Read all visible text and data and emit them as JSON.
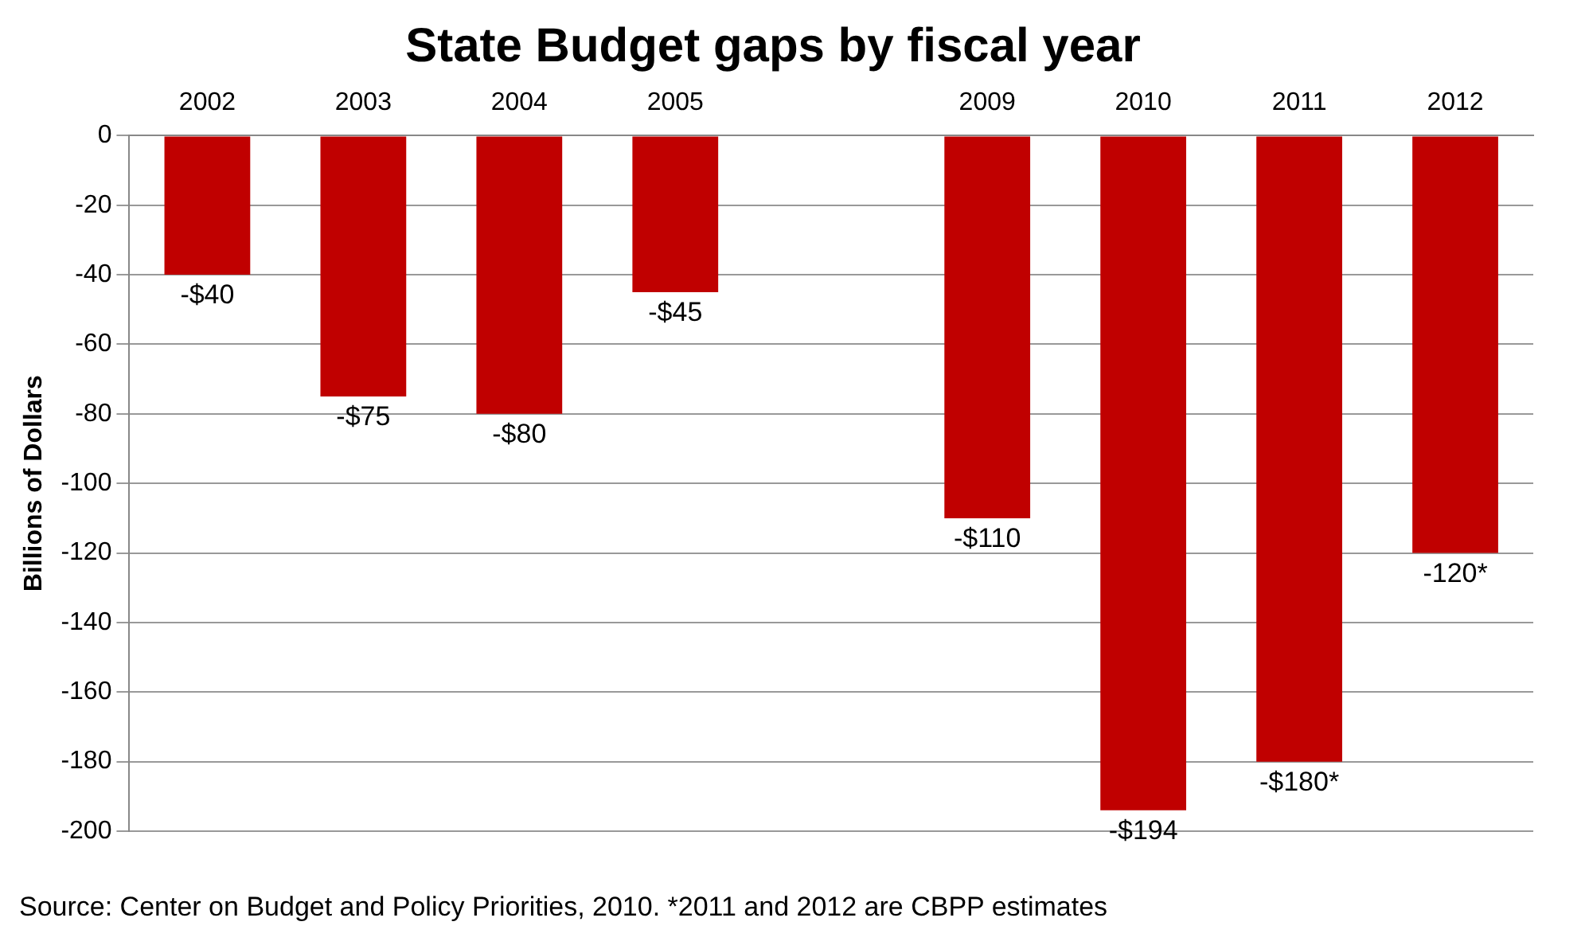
{
  "chart_data": {
    "type": "bar",
    "title": "State Budget gaps by fiscal year",
    "ylabel": "Billions of Dollars",
    "categories": [
      "2002",
      "2003",
      "2004",
      "2005",
      null,
      "2009",
      "2010",
      "2011",
      "2012"
    ],
    "values": [
      -40,
      -75,
      -80,
      -45,
      null,
      -110,
      -194,
      -180,
      -120
    ],
    "value_labels": [
      "-$40",
      "-$75",
      "-$80",
      "-$45",
      null,
      "-$110",
      "-$194",
      "-$180*",
      "-120*"
    ],
    "color": "#c00000",
    "ylim": [
      -200,
      0
    ],
    "yticks": [
      0,
      -20,
      -40,
      -60,
      -80,
      -100,
      -120,
      -140,
      -160,
      -180,
      -200
    ],
    "grid": "y",
    "annotations": [
      "Source:  Center on Budget and Policy Priorities, 2010.  *2011 and 2012 are CBPP estimates"
    ]
  }
}
